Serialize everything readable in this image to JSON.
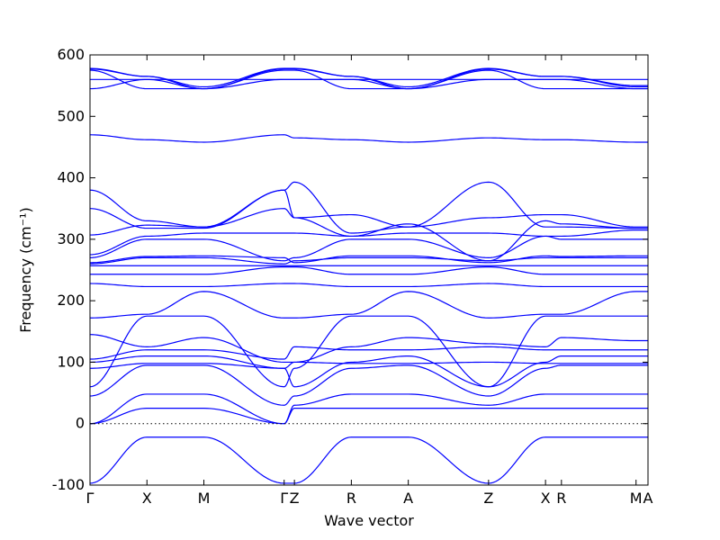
{
  "chart_data": {
    "type": "line",
    "xlabel": "Wave vector",
    "ylabel": "Frequency (cm⁻¹)",
    "ylim": [
      -100,
      600
    ],
    "yticks": [
      -100,
      0,
      100,
      200,
      300,
      400,
      500,
      600
    ],
    "grid": false,
    "line_color": "#0000ff",
    "high_symmetry_points": [
      {
        "label": "Γ",
        "x": 0.0
      },
      {
        "label": "X",
        "x": 1.0
      },
      {
        "label": "M",
        "x": 2.0
      },
      {
        "label": "Γ",
        "x": 3.41
      },
      {
        "label": "Z",
        "x": 3.59
      },
      {
        "label": "R",
        "x": 4.59
      },
      {
        "label": "A",
        "x": 5.59
      },
      {
        "label": "Z",
        "x": 7.0
      },
      {
        "label": "X",
        "x": 8.0
      },
      {
        "label": "R",
        "x": 8.28
      },
      {
        "label": "M",
        "x": 9.59
      },
      {
        "label": "A",
        "x": 9.8
      }
    ],
    "x": [
      0.0,
      1.0,
      2.0,
      3.41,
      3.59,
      4.59,
      5.59,
      7.0,
      8.0,
      8.28,
      9.59,
      9.8
    ],
    "series": [
      {
        "values": [
          -97,
          -22,
          -22,
          -97,
          -97,
          -22,
          -22,
          -97,
          -22,
          -22,
          -22,
          -22
        ]
      },
      {
        "values": [
          0,
          25,
          25,
          0,
          25,
          25,
          25,
          25,
          25,
          25,
          25,
          25
        ]
      },
      {
        "values": [
          0,
          48,
          48,
          0,
          30,
          48,
          48,
          30,
          48,
          48,
          48,
          48
        ]
      },
      {
        "values": [
          45,
          95,
          95,
          30,
          45,
          90,
          95,
          45,
          90,
          95,
          95,
          95
        ]
      },
      {
        "values": [
          60,
          175,
          175,
          60,
          90,
          175,
          175,
          60,
          175,
          175,
          175,
          175
        ]
      },
      {
        "values": [
          90,
          98,
          98,
          90,
          100,
          98,
          98,
          100,
          98,
          98,
          98,
          98
        ]
      },
      {
        "values": [
          100,
          110,
          110,
          90,
          60,
          100,
          110,
          60,
          100,
          110,
          110,
          110
        ]
      },
      {
        "values": [
          105,
          120,
          120,
          105,
          125,
          120,
          120,
          125,
          120,
          120,
          120,
          120
        ]
      },
      {
        "values": [
          145,
          125,
          140,
          100,
          100,
          125,
          140,
          130,
          125,
          140,
          135,
          135
        ]
      },
      {
        "values": [
          172,
          178,
          215,
          172,
          172,
          178,
          215,
          172,
          178,
          178,
          215,
          215
        ]
      },
      {
        "values": [
          228,
          223,
          223,
          228,
          228,
          223,
          223,
          228,
          223,
          223,
          223,
          223
        ]
      },
      {
        "values": [
          243,
          243,
          243,
          255,
          255,
          243,
          243,
          255,
          243,
          243,
          243,
          243
        ]
      },
      {
        "values": [
          257,
          257,
          257,
          257,
          257,
          257,
          257,
          257,
          257,
          257,
          257,
          257
        ]
      },
      {
        "values": [
          260,
          270,
          270,
          260,
          265,
          270,
          270,
          265,
          270,
          270,
          270,
          270
        ]
      },
      {
        "values": [
          262,
          272,
          273,
          270,
          262,
          273,
          273,
          262,
          273,
          272,
          273,
          273
        ]
      },
      {
        "values": [
          270,
          300,
          300,
          265,
          270,
          300,
          300,
          270,
          305,
          300,
          300,
          300
        ]
      },
      {
        "values": [
          275,
          305,
          310,
          310,
          310,
          305,
          310,
          310,
          305,
          305,
          315,
          315
        ]
      },
      {
        "values": [
          307,
          323,
          320,
          350,
          335,
          340,
          320,
          335,
          340,
          340,
          320,
          320
        ]
      },
      {
        "values": [
          350,
          318,
          318,
          380,
          393,
          310,
          320,
          393,
          320,
          320,
          318,
          318
        ]
      },
      {
        "values": [
          380,
          330,
          320,
          380,
          335,
          305,
          325,
          265,
          330,
          325,
          318,
          318
        ]
      },
      {
        "values": [
          470,
          462,
          458,
          470,
          465,
          462,
          458,
          465,
          462,
          462,
          458,
          458
        ]
      },
      {
        "values": [
          545,
          560,
          545,
          560,
          560,
          560,
          545,
          560,
          560,
          560,
          545,
          545
        ]
      },
      {
        "values": [
          560,
          560,
          560,
          560,
          560,
          560,
          560,
          560,
          560,
          560,
          560,
          560
        ]
      },
      {
        "values": [
          575,
          545,
          545,
          575,
          575,
          545,
          545,
          575,
          545,
          545,
          545,
          545
        ]
      },
      {
        "values": [
          577,
          565,
          545,
          577,
          577,
          565,
          545,
          577,
          565,
          565,
          548,
          548
        ]
      },
      {
        "values": [
          578,
          565,
          548,
          578,
          578,
          565,
          548,
          578,
          565,
          565,
          550,
          550
        ]
      }
    ]
  }
}
